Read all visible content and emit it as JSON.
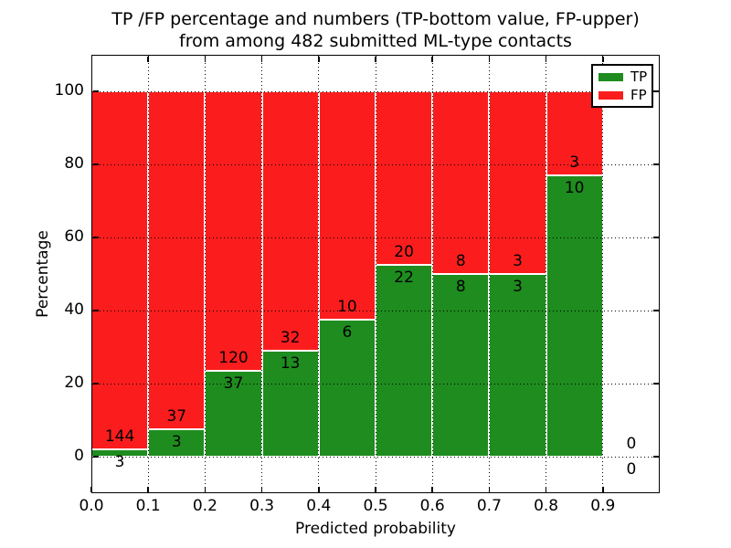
{
  "title": {
    "line1": "TP /FP percentage and numbers (TP-bottom value, FP-upper)",
    "line2": "from among 482 submitted ML-type contacts"
  },
  "axes": {
    "xlabel": "Predicted probability",
    "ylabel": "Percentage",
    "xlim": [
      0.0,
      1.0
    ],
    "ylim": [
      -10,
      110
    ],
    "grid_style": "dotted",
    "x_ticks": [
      {
        "value": 0.0,
        "label": "0.0"
      },
      {
        "value": 0.1,
        "label": "0.1"
      },
      {
        "value": 0.2,
        "label": "0.2"
      },
      {
        "value": 0.3,
        "label": "0.3"
      },
      {
        "value": 0.4,
        "label": "0.4"
      },
      {
        "value": 0.5,
        "label": "0.5"
      },
      {
        "value": 0.6,
        "label": "0.6"
      },
      {
        "value": 0.7,
        "label": "0.7"
      },
      {
        "value": 0.8,
        "label": "0.8"
      },
      {
        "value": 0.9,
        "label": "0.9"
      }
    ],
    "y_ticks": [
      {
        "value": 0,
        "label": "0"
      },
      {
        "value": 20,
        "label": "20"
      },
      {
        "value": 40,
        "label": "40"
      },
      {
        "value": 60,
        "label": "60"
      },
      {
        "value": 80,
        "label": "80"
      },
      {
        "value": 100,
        "label": "100"
      }
    ]
  },
  "legend": {
    "position": "upper right",
    "items": [
      {
        "label": "TP",
        "color": "#1e8c1e"
      },
      {
        "label": "FP",
        "color": "#fb1d1d"
      }
    ]
  },
  "chart_data": {
    "type": "bar",
    "stacked": true,
    "normalized": "each bin stack totals 100%",
    "title": "TP /FP percentage and numbers (TP-bottom value, FP-upper) from among 482 submitted ML-type contacts",
    "xlabel": "Predicted probability",
    "ylabel": "Percentage",
    "total_contacts": 482,
    "bin_edges": [
      0.0,
      0.1,
      0.2,
      0.3,
      0.4,
      0.5,
      0.6,
      0.7,
      0.8,
      0.9,
      1.0
    ],
    "series": [
      {
        "name": "TP",
        "color": "#1e8c1e",
        "counts": [
          3,
          3,
          37,
          13,
          6,
          22,
          8,
          3,
          10,
          0
        ]
      },
      {
        "name": "FP",
        "color": "#fb1d1d",
        "counts": [
          144,
          37,
          120,
          32,
          10,
          20,
          8,
          3,
          3,
          0
        ]
      }
    ],
    "tp_percent_by_bin": [
      2.04,
      7.5,
      23.57,
      28.89,
      37.5,
      52.38,
      50.0,
      50.0,
      76.92,
      0
    ],
    "bar_edge_color": "#ffffff",
    "legend_position": "upper right"
  }
}
